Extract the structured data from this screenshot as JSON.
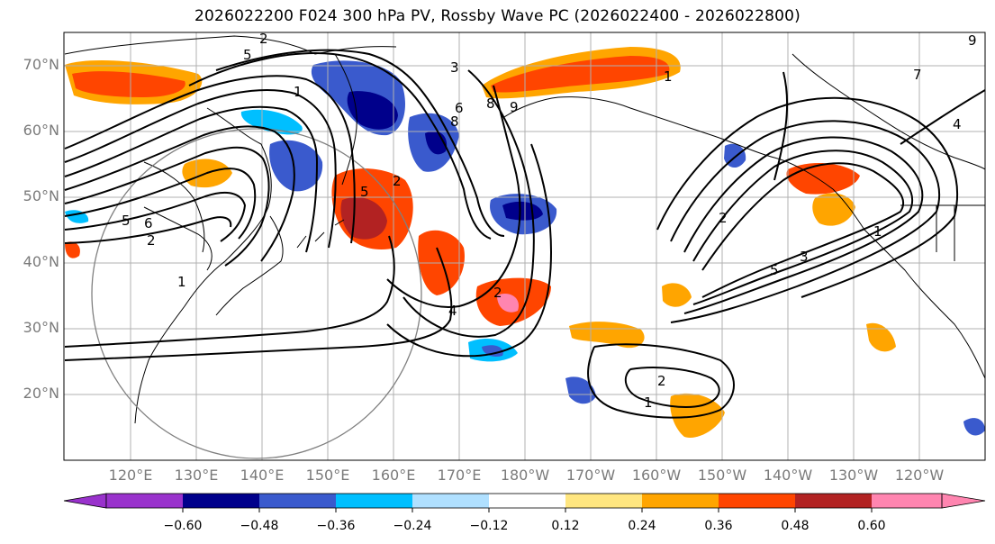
{
  "title": "2026022200 F024 300 hPa PV, Rossby Wave PC (2026022400 - 2026022800)",
  "lat_labels": [
    "70°N",
    "60°N",
    "50°N",
    "40°N",
    "30°N",
    "20°N"
  ],
  "lon_labels": [
    "120°E",
    "130°E",
    "140°E",
    "150°E",
    "160°E",
    "170°E",
    "180°W",
    "170°W",
    "160°W",
    "150°W",
    "140°W",
    "130°W",
    "120°W"
  ],
  "colorbar": {
    "ticks": [
      "−0.60",
      "−0.48",
      "−0.36",
      "−0.24",
      "−0.12",
      "0.12",
      "0.24",
      "0.36",
      "0.48",
      "0.60"
    ],
    "colors": [
      "#9932cc",
      "#00008b",
      "#3a5acd",
      "#00bfff",
      "#b0e0ff",
      "#ffffff",
      "#ffe680",
      "#ffa500",
      "#ff4500",
      "#b22222",
      "#ff85b0"
    ]
  },
  "contour_labels": [
    "5",
    "1",
    "2",
    "5",
    "8",
    "6",
    "5",
    "6",
    "2",
    "1",
    "2",
    "1",
    "4",
    "2",
    "3",
    "9",
    "2",
    "1",
    "7",
    "4",
    "3",
    "5",
    "8",
    "9",
    "2",
    "1"
  ],
  "colors": {
    "land_lines": "#000000",
    "grid": "#b0b0b0",
    "circle": "#808080",
    "axis_labels": "#7a7a7a"
  }
}
